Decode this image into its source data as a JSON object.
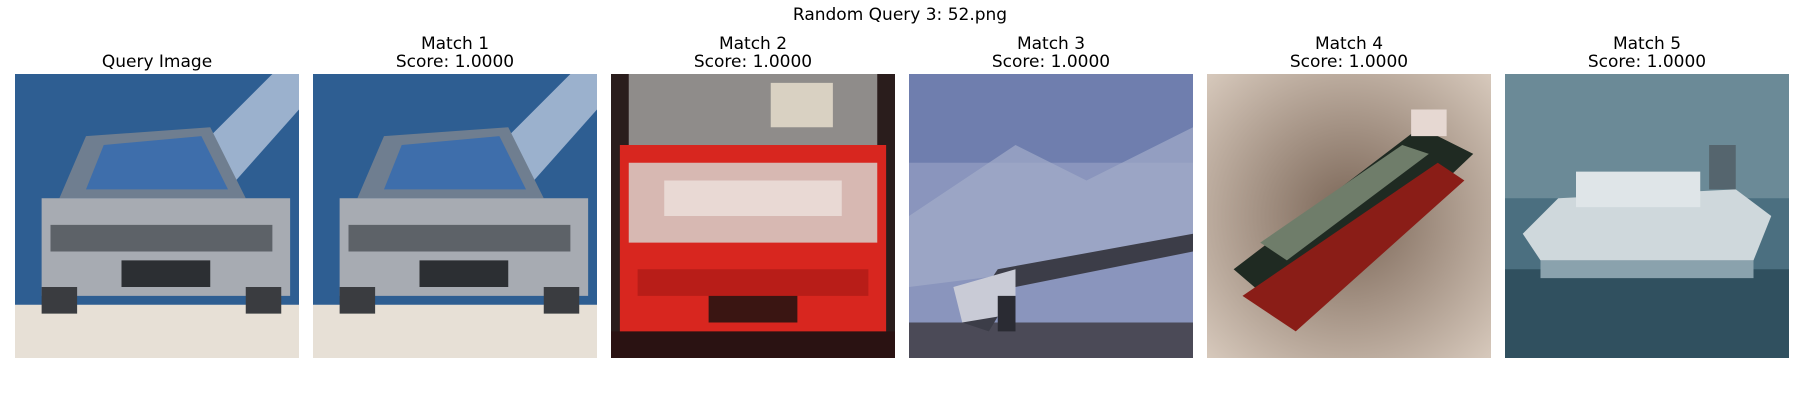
{
  "figure": {
    "title": "Random Query 3: 52.png"
  },
  "panels": [
    {
      "title": "Query Image",
      "score": "",
      "scene": "car-silver"
    },
    {
      "title": "Match 1",
      "score": "Score: 1.0000",
      "scene": "car-silver"
    },
    {
      "title": "Match 2",
      "score": "Score: 1.0000",
      "scene": "truck-red"
    },
    {
      "title": "Match 3",
      "score": "Score: 1.0000",
      "scene": "airplane-sky"
    },
    {
      "title": "Match 4",
      "score": "Score: 1.0000",
      "scene": "ship-red"
    },
    {
      "title": "Match 5",
      "score": "Score: 1.0000",
      "scene": "ship-white"
    }
  ],
  "colors": {
    "car_sky": "#2f5f94",
    "car_body": "#a7abb2",
    "truck_red": "#d8261f",
    "airplane_sky": "#8a95bd",
    "ship_bg": "#7d6757",
    "ship_hull": "#8a1d17",
    "sea": "#3d5f73"
  }
}
